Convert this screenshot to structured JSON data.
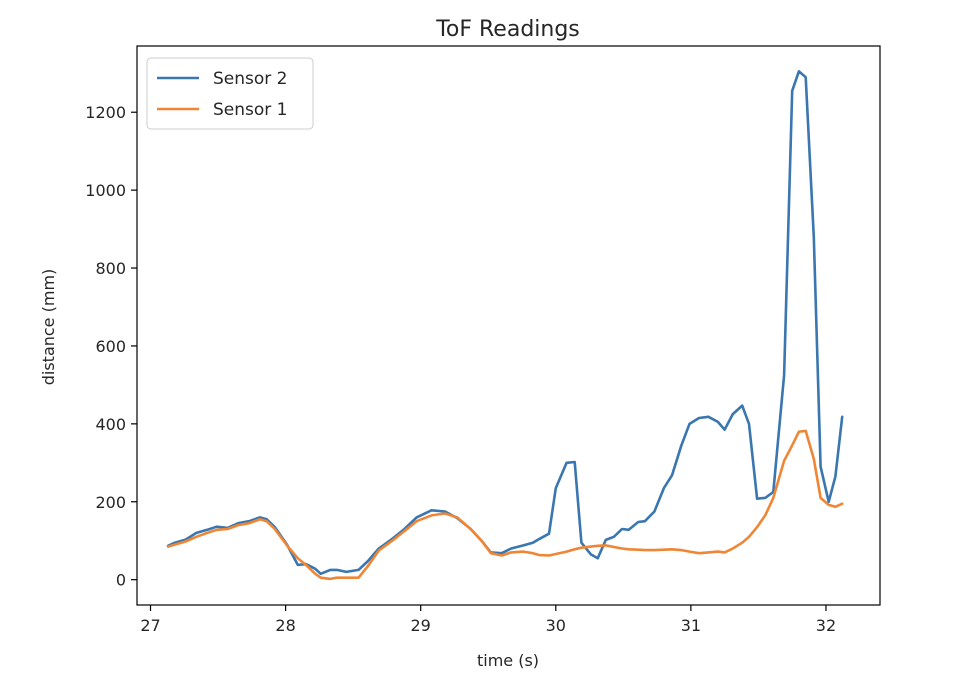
{
  "chart_data": {
    "type": "line",
    "title": "ToF Readings",
    "xlabel": "time (s)",
    "ylabel": "distance (mm)",
    "xlim": [
      26.9,
      32.4
    ],
    "ylim": [
      -65,
      1370
    ],
    "xticks": [
      27,
      28,
      29,
      30,
      31,
      32
    ],
    "yticks": [
      0,
      200,
      400,
      600,
      800,
      1000,
      1200
    ],
    "grid": false,
    "legend_position": "upper-left",
    "series": [
      {
        "name": "Sensor 2",
        "color": "#3a76af",
        "x": [
          27.13,
          27.18,
          27.26,
          27.34,
          27.42,
          27.49,
          27.57,
          27.65,
          27.73,
          27.81,
          27.86,
          27.92,
          28.01,
          28.09,
          28.15,
          28.22,
          28.26,
          28.33,
          28.38,
          28.45,
          28.54,
          28.61,
          28.69,
          28.79,
          28.88,
          28.97,
          29.08,
          29.18,
          29.27,
          29.37,
          29.45,
          29.52,
          29.6,
          29.67,
          29.76,
          29.83,
          29.88,
          29.95,
          30.0,
          30.08,
          30.14,
          30.19,
          30.26,
          30.31,
          30.37,
          30.43,
          30.49,
          30.54,
          30.61,
          30.66,
          30.73,
          30.8,
          30.86,
          30.93,
          30.99,
          31.06,
          31.13,
          31.2,
          31.25,
          31.31,
          31.38,
          31.43,
          31.49,
          31.55,
          31.61,
          31.69,
          31.75,
          31.8,
          31.85,
          31.91,
          31.96,
          32.02,
          32.07,
          32.12
        ],
        "values": [
          87,
          95,
          103,
          120,
          128,
          136,
          133,
          145,
          150,
          160,
          155,
          135,
          90,
          38,
          40,
          28,
          15,
          25,
          25,
          20,
          25,
          48,
          80,
          105,
          130,
          160,
          178,
          175,
          158,
          130,
          100,
          70,
          68,
          80,
          88,
          95,
          105,
          118,
          235,
          300,
          302,
          95,
          65,
          55,
          102,
          110,
          130,
          128,
          148,
          150,
          175,
          235,
          268,
          345,
          400,
          415,
          418,
          405,
          385,
          425,
          447,
          400,
          208,
          210,
          225,
          525,
          1255,
          1305,
          1290,
          880,
          290,
          200,
          265,
          418
        ]
      },
      {
        "name": "Sensor 1",
        "color": "#ef8636",
        "x": [
          27.13,
          27.18,
          27.26,
          27.34,
          27.42,
          27.49,
          27.57,
          27.65,
          27.73,
          27.81,
          27.86,
          27.92,
          28.01,
          28.09,
          28.15,
          28.22,
          28.26,
          28.33,
          28.38,
          28.45,
          28.54,
          28.61,
          28.69,
          28.79,
          28.88,
          28.97,
          29.08,
          29.18,
          29.27,
          29.37,
          29.45,
          29.52,
          29.6,
          29.67,
          29.76,
          29.83,
          29.88,
          29.95,
          30.0,
          30.08,
          30.14,
          30.19,
          30.26,
          30.31,
          30.37,
          30.43,
          30.49,
          30.54,
          30.61,
          30.66,
          30.73,
          30.8,
          30.86,
          30.93,
          30.99,
          31.06,
          31.13,
          31.2,
          31.25,
          31.31,
          31.38,
          31.43,
          31.49,
          31.55,
          31.61,
          31.69,
          31.75,
          31.8,
          31.85,
          31.91,
          31.96,
          32.02,
          32.07,
          32.12
        ],
        "values": [
          85,
          90,
          98,
          110,
          120,
          128,
          130,
          140,
          145,
          155,
          150,
          130,
          88,
          55,
          38,
          15,
          5,
          2,
          5,
          5,
          5,
          35,
          75,
          100,
          125,
          150,
          165,
          170,
          160,
          130,
          100,
          68,
          62,
          70,
          72,
          68,
          63,
          62,
          66,
          72,
          78,
          82,
          85,
          87,
          88,
          84,
          80,
          78,
          77,
          76,
          76,
          77,
          78,
          76,
          72,
          68,
          70,
          72,
          70,
          80,
          95,
          110,
          135,
          165,
          210,
          305,
          345,
          380,
          382,
          310,
          210,
          192,
          187,
          195
        ]
      }
    ]
  }
}
